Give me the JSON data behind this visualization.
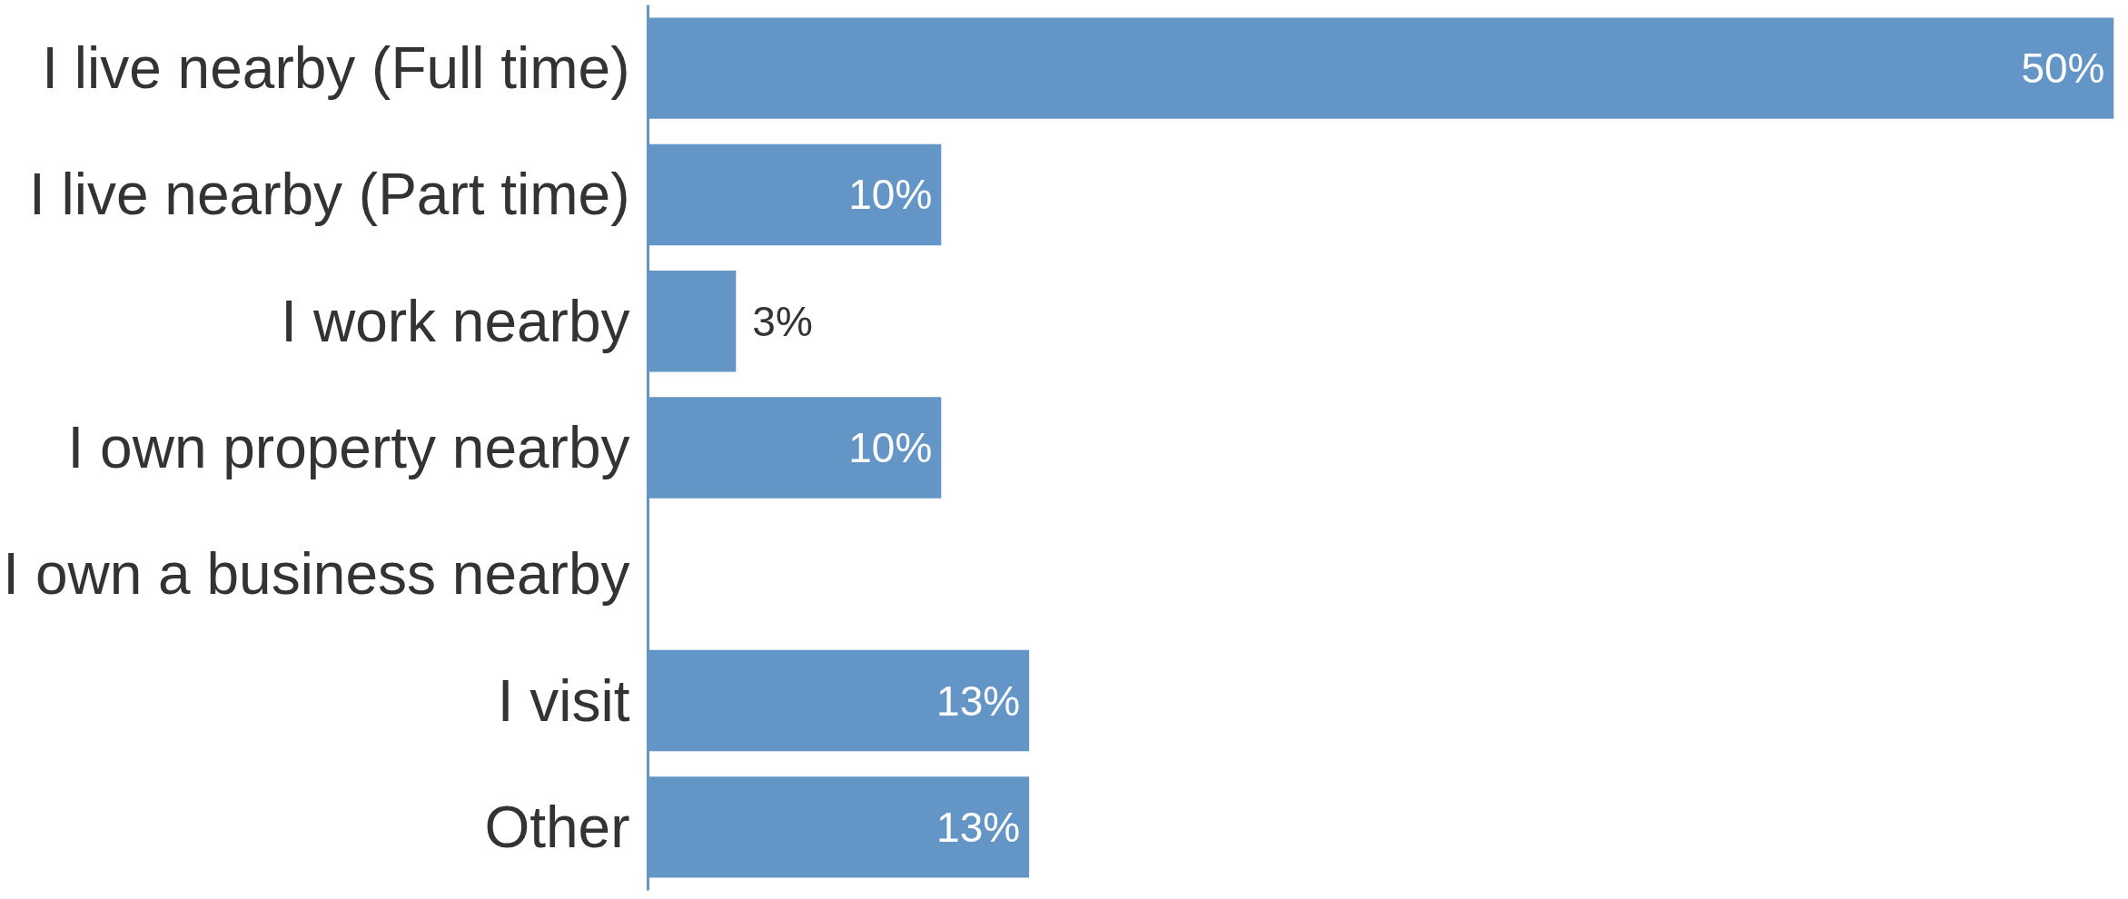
{
  "chart_data": {
    "type": "bar",
    "orientation": "horizontal",
    "categories": [
      "I live nearby (Full time)",
      "I live nearby (Part time)",
      "I work nearby",
      "I own property nearby",
      "I own a business nearby",
      "I visit",
      "Other"
    ],
    "values": [
      50,
      10,
      3,
      10,
      0,
      13,
      13
    ],
    "value_labels": [
      "50%",
      "10%",
      "3%",
      "10%",
      null,
      "13%",
      "13%"
    ],
    "color": "#6395c6",
    "xlim": [
      0,
      50
    ],
    "grid": false
  }
}
